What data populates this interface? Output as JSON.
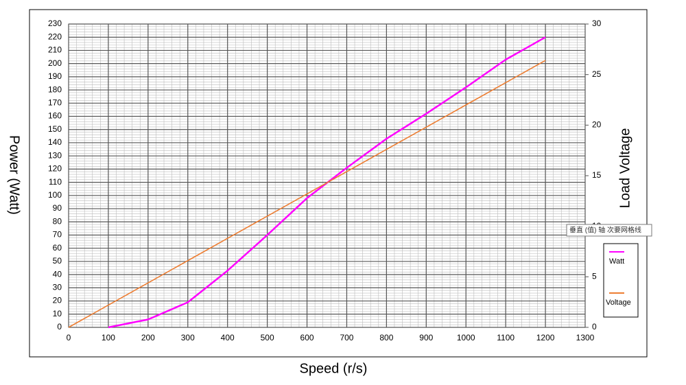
{
  "chart_data": {
    "type": "line",
    "x_label": "Speed (r/s)",
    "y_label": "Power (Watt)",
    "y2_label": "Load Voltage",
    "xlim": [
      0,
      1300
    ],
    "xticks": [
      0,
      100,
      200,
      300,
      400,
      500,
      600,
      700,
      800,
      900,
      1000,
      1100,
      1200,
      1300
    ],
    "ylim": [
      0,
      230
    ],
    "yticks": [
      0,
      10,
      20,
      30,
      40,
      50,
      60,
      70,
      80,
      90,
      100,
      110,
      120,
      130,
      140,
      150,
      160,
      170,
      180,
      190,
      200,
      210,
      220,
      230
    ],
    "y2lim": [
      0,
      30
    ],
    "y2ticks": [
      0,
      5,
      10,
      15,
      20,
      25,
      30
    ],
    "grid": true,
    "minor_grid": {
      "x": 20,
      "y": 2
    },
    "series": [
      {
        "name": "Watt",
        "color": "#ff00ff",
        "x": [
          100,
          200,
          300,
          400,
          500,
          600,
          700,
          800,
          900,
          1000,
          1100,
          1200
        ],
        "values": [
          0,
          6,
          19,
          43,
          70,
          98,
          121,
          143,
          162,
          182,
          203,
          220
        ]
      },
      {
        "name": "Voltage",
        "color": "#ed7d31",
        "axis": "y2",
        "x": [
          0,
          100,
          200,
          300,
          400,
          500,
          600,
          700,
          800,
          900,
          1000,
          1100,
          1200
        ],
        "values": [
          0,
          2.2,
          4.4,
          6.6,
          8.8,
          11,
          13.2,
          15.4,
          17.6,
          19.8,
          22,
          24.2,
          26.4
        ]
      }
    ],
    "legend": "right",
    "tooltip": "垂直 (值) 轴 次要网格线"
  }
}
